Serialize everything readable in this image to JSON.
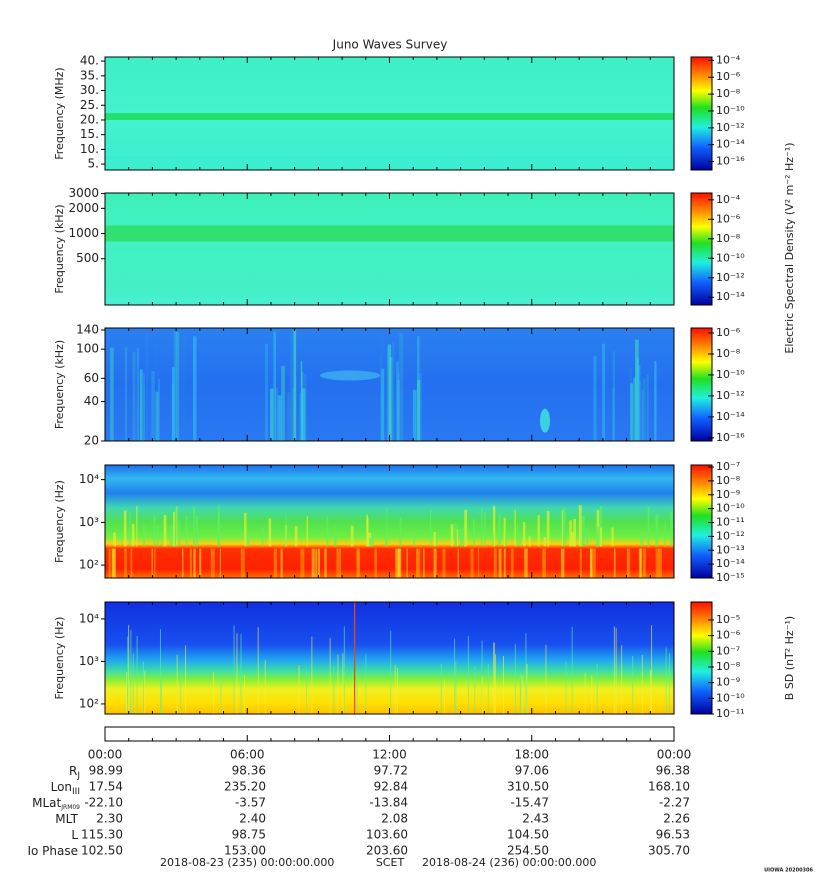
{
  "title": "Juno Waves Survey",
  "chart_data": [
    {
      "type": "spectrogram",
      "ylabel": "Frequency (MHz)",
      "ylog": false,
      "ylim": [
        3,
        41.4
      ],
      "yticks": [
        {
          "value": 5,
          "label": "5."
        },
        {
          "value": 10,
          "label": "10."
        },
        {
          "value": 15,
          "label": "15."
        },
        {
          "value": 20,
          "label": "20."
        },
        {
          "value": 25,
          "label": "25."
        },
        {
          "value": 30,
          "label": "30."
        },
        {
          "value": 35,
          "label": "35."
        },
        {
          "value": 40,
          "label": "40."
        }
      ],
      "colorbar": {
        "log": true,
        "lim": [
          1e-17,
          0.00025
        ],
        "ticks": [
          {
            "value": 0.0001,
            "label": "10⁻⁴"
          },
          {
            "value": 1e-06,
            "label": "10⁻⁶"
          },
          {
            "value": 1e-08,
            "label": "10⁻⁸"
          },
          {
            "value": 1e-10,
            "label": "10⁻¹⁰"
          },
          {
            "value": 1e-12,
            "label": "10⁻¹²"
          },
          {
            "value": 1e-14,
            "label": "10⁻¹⁴"
          },
          {
            "value": 1e-16,
            "label": "10⁻¹⁶"
          }
        ]
      }
    },
    {
      "type": "spectrogram",
      "ylabel": "Frequency (kHz)",
      "ylog": true,
      "ylim": [
        140,
        3050
      ],
      "yticks": [
        500,
        1000,
        2000,
        3000
      ],
      "colorbar": {
        "log": true,
        "lim": [
          1.6e-15,
          0.0005
        ],
        "ticks": [
          {
            "value": 0.0001,
            "label": "10⁻⁴"
          },
          {
            "value": 1e-06,
            "label": "10⁻⁶"
          },
          {
            "value": 1e-08,
            "label": "10⁻⁸"
          },
          {
            "value": 1e-10,
            "label": "10⁻¹⁰"
          },
          {
            "value": 1e-12,
            "label": "10⁻¹²"
          },
          {
            "value": 1e-14,
            "label": "10⁻¹⁴"
          }
        ]
      }
    },
    {
      "type": "spectrogram",
      "ylabel": "Frequency (kHz)",
      "ylog": true,
      "ylim": [
        20,
        145
      ],
      "yticks": [
        20,
        40,
        60,
        100,
        140
      ],
      "colorbar": {
        "log": true,
        "lim": [
          5e-17,
          3e-06
        ],
        "ticks": [
          {
            "value": 1e-06,
            "label": "10⁻⁶"
          },
          {
            "value": 1e-08,
            "label": "10⁻⁸"
          },
          {
            "value": 1e-10,
            "label": "10⁻¹⁰"
          },
          {
            "value": 1e-12,
            "label": "10⁻¹²"
          },
          {
            "value": 1e-14,
            "label": "10⁻¹⁴"
          },
          {
            "value": 1e-16,
            "label": "10⁻¹⁶"
          }
        ]
      }
    },
    {
      "type": "spectrogram",
      "ylabel": "Frequency (Hz)",
      "ylog": true,
      "ylim": [
        50,
        22000
      ],
      "yticks": [
        {
          "value": 100,
          "label": "10²"
        },
        {
          "value": 1000,
          "label": "10³"
        },
        {
          "value": 10000,
          "label": "10⁴"
        }
      ],
      "colorbar": {
        "log": true,
        "lim": [
          1e-15,
          1.4e-07
        ],
        "ticks": [
          {
            "value": 1e-07,
            "label": "10⁻⁷"
          },
          {
            "value": 1e-08,
            "label": "10⁻⁸"
          },
          {
            "value": 1e-09,
            "label": "10⁻⁹"
          },
          {
            "value": 1e-10,
            "label": "10⁻¹⁰"
          },
          {
            "value": 1e-11,
            "label": "10⁻¹¹"
          },
          {
            "value": 1e-12,
            "label": "10⁻¹²"
          },
          {
            "value": 1e-13,
            "label": "10⁻¹³"
          },
          {
            "value": 1e-14,
            "label": "10⁻¹⁴"
          },
          {
            "value": 1e-15,
            "label": "10⁻¹⁵"
          }
        ]
      }
    },
    {
      "type": "spectrogram",
      "ylabel": "Frequency (Hz)",
      "ylog": true,
      "ylim": [
        58,
        25000
      ],
      "yticks": [
        {
          "value": 100,
          "label": "10²"
        },
        {
          "value": 1000,
          "label": "10³"
        },
        {
          "value": 10000,
          "label": "10⁴"
        }
      ],
      "colorbar": {
        "log": true,
        "lim": [
          1e-11,
          0.00014
        ],
        "ticks": [
          {
            "value": 1e-05,
            "label": "10⁻⁵"
          },
          {
            "value": 1e-06,
            "label": "10⁻⁶"
          },
          {
            "value": 1e-07,
            "label": "10⁻⁷"
          },
          {
            "value": 1e-08,
            "label": "10⁻⁸"
          },
          {
            "value": 1e-09,
            "label": "10⁻⁹"
          },
          {
            "value": 1e-10,
            "label": "10⁻¹⁰"
          },
          {
            "value": 1e-11,
            "label": "10⁻¹¹"
          }
        ]
      }
    }
  ],
  "colorbar_labels": [
    "Electric Spectral Density (V² m⁻² Hz⁻¹)",
    "B SD (nT² Hz⁻¹)"
  ],
  "time_axis": {
    "xlim": [
      0,
      24
    ],
    "xticks": [
      {
        "value": 0,
        "label": "00:00"
      },
      {
        "value": 6,
        "label": "06:00"
      },
      {
        "value": 12,
        "label": "12:00"
      },
      {
        "value": 18,
        "label": "18:00"
      },
      {
        "value": 24,
        "label": "00:00"
      }
    ],
    "xminorticks": [
      1,
      2,
      3,
      4,
      5,
      7,
      8,
      9,
      10,
      11,
      13,
      14,
      15,
      16,
      17,
      19,
      20,
      21,
      22,
      23
    ]
  },
  "ephemeris": {
    "rows": [
      {
        "label": "R",
        "sub": "J",
        "values": [
          "98.99",
          "98.36",
          "97.72",
          "97.06",
          "96.38"
        ]
      },
      {
        "label": "Lon",
        "sub": "III",
        "values": [
          "17.54",
          "235.20",
          "92.84",
          "310.50",
          "168.10"
        ]
      },
      {
        "label": "MLat",
        "sub": "JRM09",
        "values": [
          "-22.10",
          "-3.57",
          "-13.84",
          "-15.47",
          "-2.27"
        ]
      },
      {
        "label": "MLT",
        "values": [
          "2.30",
          "2.40",
          "2.08",
          "2.43",
          "2.26"
        ]
      },
      {
        "label": "L",
        "values": [
          "115.30",
          "98.75",
          "103.60",
          "104.50",
          "96.53"
        ]
      },
      {
        "label": "Io Phase",
        "values": [
          "102.50",
          "153.00",
          "203.60",
          "254.50",
          "305.70"
        ]
      }
    ]
  },
  "footer": {
    "start": "2018-08-23 (235) 00:00:00.000",
    "center": "SCET",
    "end": "2018-08-24 (236) 00:00:00.000",
    "stamp": "UIOWA 20200306"
  }
}
